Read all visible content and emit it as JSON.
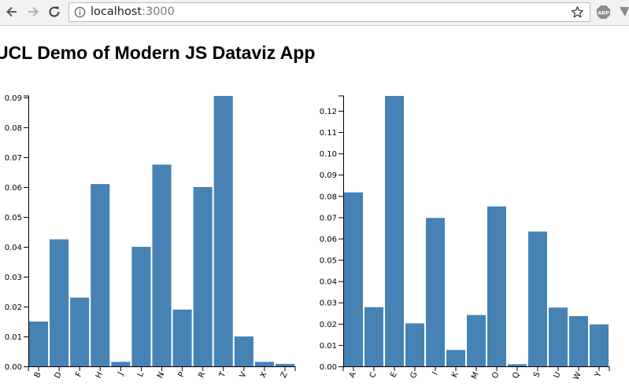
{
  "browser": {
    "url_host": "localhost",
    "url_port": ":3000",
    "abp_label": "ABP"
  },
  "page": {
    "title": "UCL Demo of Modern JS Dataviz App"
  },
  "colors": {
    "bar": "#4682b4",
    "toolbar": "#f2f2f2"
  },
  "chart_data": [
    {
      "type": "bar",
      "categories": [
        "B",
        "D",
        "F",
        "H",
        "J",
        "L",
        "N",
        "P",
        "R",
        "T",
        "V",
        "X",
        "Z"
      ],
      "values": [
        0.015,
        0.0425,
        0.023,
        0.061,
        0.0015,
        0.04,
        0.0675,
        0.019,
        0.06,
        0.0905,
        0.01,
        0.0015,
        0.0008
      ],
      "yticks": [
        "0.00",
        "0.01",
        "0.02",
        "0.03",
        "0.04",
        "0.05",
        "0.06",
        "0.07",
        "0.08",
        "0.09"
      ],
      "ylim": [
        0,
        0.0905
      ]
    },
    {
      "type": "bar",
      "categories": [
        "A",
        "C",
        "E",
        "G",
        "I",
        "K",
        "M",
        "O",
        "Q",
        "S",
        "U",
        "W",
        "Y"
      ],
      "values": [
        0.0817,
        0.0278,
        0.127,
        0.0202,
        0.0697,
        0.0077,
        0.0241,
        0.0751,
        0.001,
        0.0633,
        0.0276,
        0.0236,
        0.0197
      ],
      "yticks": [
        "0.00",
        "0.01",
        "0.02",
        "0.03",
        "0.04",
        "0.05",
        "0.06",
        "0.07",
        "0.08",
        "0.09",
        "0.10",
        "0.11",
        "0.12"
      ],
      "ylim": [
        0,
        0.127
      ]
    }
  ]
}
